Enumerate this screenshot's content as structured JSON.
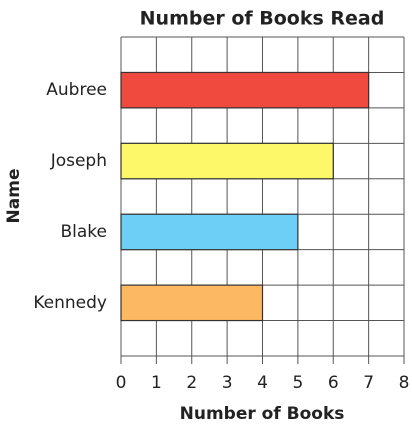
{
  "chart_data": {
    "type": "barh",
    "title": "Number of Books Read",
    "categories": [
      "Aubree",
      "Joseph",
      "Blake",
      "Kennedy"
    ],
    "values": [
      7,
      6,
      5,
      4
    ],
    "colors": [
      "#f04a3e",
      "#fdf86a",
      "#6dcff6",
      "#fdb863"
    ],
    "xlabel": "Number of Books",
    "ylabel": "Name",
    "xlim": [
      0,
      8
    ],
    "xticks": [
      0,
      1,
      2,
      3,
      4,
      5,
      6,
      7,
      8
    ],
    "grid": true
  }
}
